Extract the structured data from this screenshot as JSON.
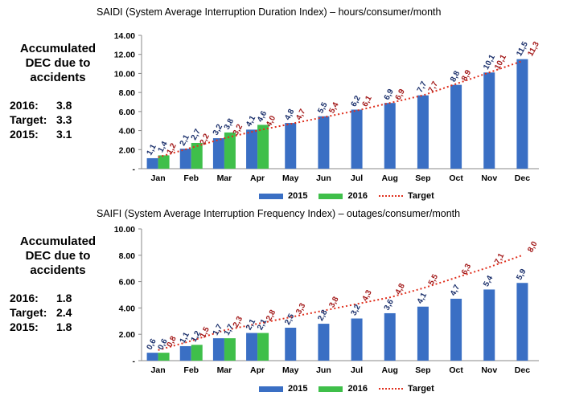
{
  "colors": {
    "s2015": "#3a6fc4",
    "s2016": "#3fbf4a",
    "target": "#e0301e",
    "label2015": "#1a2f6b",
    "labelTarget": "#a31919"
  },
  "panels": [
    {
      "title": "SAIDI (System Average Interruption Duration Index) – hours/consumer/month",
      "side_heading": [
        "Accumulated",
        "DEC due to",
        "accidents"
      ],
      "side_rows": [
        {
          "label": "2016:",
          "value": "3.8"
        },
        {
          "label": "Target:",
          "value": "3.3"
        },
        {
          "label": "2015:",
          "value": "3.1"
        }
      ]
    },
    {
      "title": "SAIFI (System Average Interruption Frequency Index) – outages/consumer/month",
      "side_heading": [
        "Accumulated",
        "DEC due to",
        "accidents"
      ],
      "side_rows": [
        {
          "label": "2016:",
          "value": "1.8"
        },
        {
          "label": "Target:",
          "value": "2.4"
        },
        {
          "label": "2015:",
          "value": "1.8"
        }
      ]
    }
  ],
  "legend": {
    "s2015": "2015",
    "s2016": "2016",
    "target": "Target"
  },
  "chart_data": [
    {
      "type": "bar",
      "title": "SAIDI (System Average Interruption Duration Index) – hours/consumer/month",
      "categories": [
        "Jan",
        "Feb",
        "Mar",
        "Apr",
        "May",
        "Jun",
        "Jul",
        "Aug",
        "Sep",
        "Oct",
        "Nov",
        "Dec"
      ],
      "yticks": [
        "-",
        "2.00",
        "4.00",
        "6.00",
        "8.00",
        "10.00",
        "12.00",
        "14.00"
      ],
      "ylim": [
        0,
        14
      ],
      "series": [
        {
          "name": "2015",
          "type": "bar",
          "values": [
            1.1,
            2.1,
            3.2,
            4.1,
            4.8,
            5.5,
            6.2,
            6.9,
            7.7,
            8.8,
            10.1,
            11.5
          ],
          "labels": [
            "1,1",
            "2,1",
            "3,2",
            "4,1",
            "4,8",
            "5,5",
            "6,2",
            "6,9",
            "7,7",
            "8,8",
            "10,1",
            "11,5"
          ]
        },
        {
          "name": "2016",
          "type": "bar",
          "values": [
            1.4,
            2.7,
            3.8,
            4.6,
            null,
            null,
            null,
            null,
            null,
            null,
            null,
            null
          ],
          "labels": [
            "1,4",
            "2,7",
            "3,8",
            "4,6",
            "",
            "",
            "",
            "",
            "",
            "",
            "",
            ""
          ]
        },
        {
          "name": "Target",
          "type": "line",
          "values": [
            1.2,
            2.2,
            3.2,
            4.0,
            4.7,
            5.4,
            6.1,
            6.9,
            7.7,
            8.9,
            10.1,
            11.3
          ],
          "labels": [
            "1,2",
            "2,2",
            "3,2",
            "4,0",
            "4,7",
            "5,4",
            "6,1",
            "6,9",
            "7,7",
            "8,9",
            "10,1",
            "11,3"
          ]
        }
      ],
      "legend": "bottom"
    },
    {
      "type": "bar",
      "title": "SAIFI (System Average Interruption Frequency Index) – outages/consumer/month",
      "categories": [
        "Jan",
        "Feb",
        "Mar",
        "Apr",
        "May",
        "Jun",
        "Jul",
        "Aug",
        "Sep",
        "Oct",
        "Nov",
        "Dec"
      ],
      "yticks": [
        "-",
        "2.00",
        "4.00",
        "6.00",
        "8.00",
        "10.00"
      ],
      "ylim": [
        0,
        10
      ],
      "series": [
        {
          "name": "2015",
          "type": "bar",
          "values": [
            0.6,
            1.1,
            1.7,
            2.1,
            2.5,
            2.8,
            3.2,
            3.6,
            4.1,
            4.7,
            5.4,
            5.9
          ],
          "labels": [
            "0,6",
            "1,1",
            "1,7",
            "2,1",
            "2,5",
            "2,8",
            "3,2",
            "3,6",
            "4,1",
            "4,7",
            "5,4",
            "5,9"
          ]
        },
        {
          "name": "2016",
          "type": "bar",
          "values": [
            0.6,
            1.2,
            1.7,
            2.1,
            null,
            null,
            null,
            null,
            null,
            null,
            null,
            null
          ],
          "labels": [
            "0,6",
            "1,2",
            "1,7",
            "2,1",
            "",
            "",
            "",
            "",
            "",
            "",
            "",
            ""
          ]
        },
        {
          "name": "Target",
          "type": "line",
          "values": [
            0.8,
            1.5,
            2.3,
            2.8,
            3.3,
            3.8,
            4.3,
            4.8,
            5.5,
            6.3,
            7.1,
            8.0
          ],
          "labels": [
            "0,8",
            "1,5",
            "2,3",
            "2,8",
            "3,3",
            "3,8",
            "4,3",
            "4,8",
            "5,5",
            "6,3",
            "7,1",
            "8,0"
          ]
        }
      ],
      "legend": "bottom"
    }
  ]
}
